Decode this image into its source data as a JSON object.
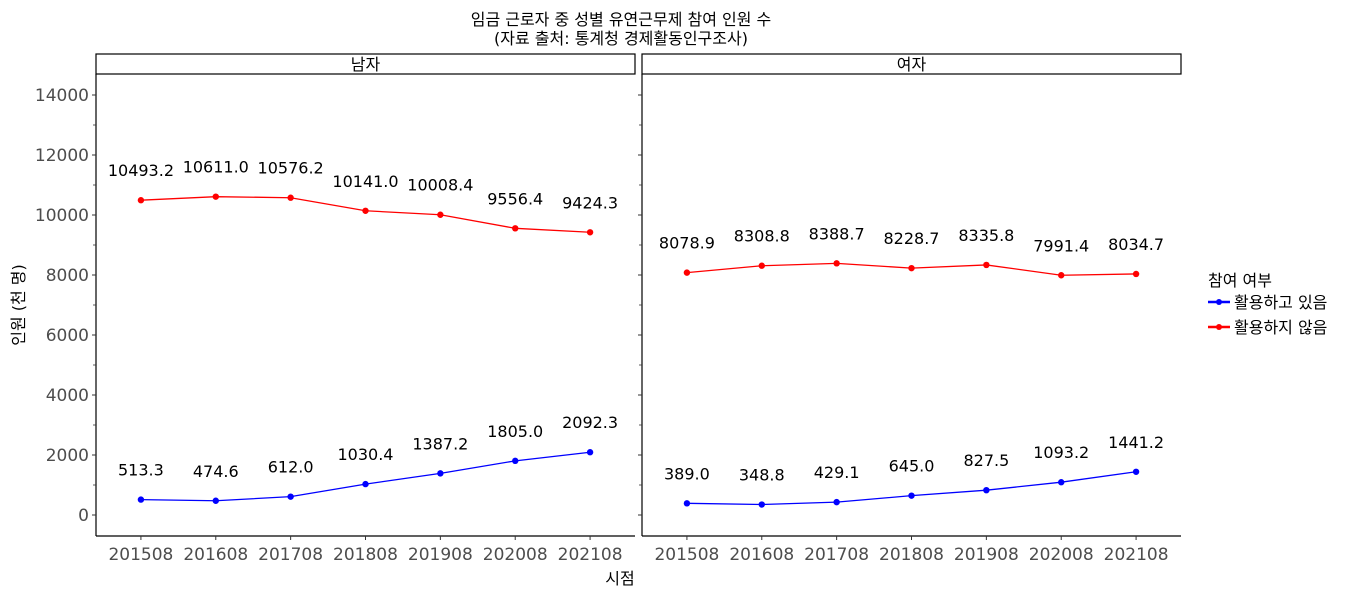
{
  "chart_data": {
    "type": "line",
    "title": "임금 근로자 중 성별 유연근무제 참여 인원 수",
    "subtitle": "(자료 출처: 통계청 경제활동인구조사)",
    "xlabel": "시점",
    "ylabel": "인원 (천 명)",
    "categories": [
      "201508",
      "201608",
      "201708",
      "201808",
      "201908",
      "202008",
      "202108"
    ],
    "ylim": [
      -700,
      14700
    ],
    "yticks": [
      0,
      2000,
      4000,
      6000,
      8000,
      10000,
      12000,
      14000
    ],
    "grid": false,
    "legend": {
      "title": "참여 여부",
      "position": "right",
      "entries": [
        {
          "label": "활용하고 있음",
          "color": "#0000ff"
        },
        {
          "label": "활용하지 않음",
          "color": "#ff0000"
        }
      ]
    },
    "panels": [
      {
        "name": "남자",
        "series": [
          {
            "name": "활용하고 있음",
            "color": "#0000ff",
            "values": [
              513.3,
              474.6,
              612.0,
              1030.4,
              1387.2,
              1805.0,
              2092.3
            ],
            "labels": [
              "513.3",
              "474.6",
              "612.0",
              "1030.4",
              "1387.2",
              "1805.0",
              "2092.3"
            ]
          },
          {
            "name": "활용하지 않음",
            "color": "#ff0000",
            "values": [
              10493.2,
              10611.0,
              10576.2,
              10141.0,
              10008.4,
              9556.4,
              9424.3
            ],
            "labels": [
              "10493.2",
              "10611.0",
              "10576.2",
              "10141.0",
              "10008.4",
              "9556.4",
              "9424.3"
            ]
          }
        ]
      },
      {
        "name": "여자",
        "series": [
          {
            "name": "활용하고 있음",
            "color": "#0000ff",
            "values": [
              389.0,
              348.8,
              429.1,
              645.0,
              827.5,
              1093.2,
              1441.2
            ],
            "labels": [
              "389.0",
              "348.8",
              "429.1",
              "645.0",
              "827.5",
              "1093.2",
              "1441.2"
            ]
          },
          {
            "name": "활용하지 않음",
            "color": "#ff0000",
            "values": [
              8078.9,
              8308.8,
              8388.7,
              8228.7,
              8335.8,
              7991.4,
              8034.7
            ],
            "labels": [
              "8078.9",
              "8308.8",
              "8388.7",
              "8228.7",
              "8335.8",
              "7991.4",
              "8034.7"
            ]
          }
        ]
      }
    ]
  }
}
